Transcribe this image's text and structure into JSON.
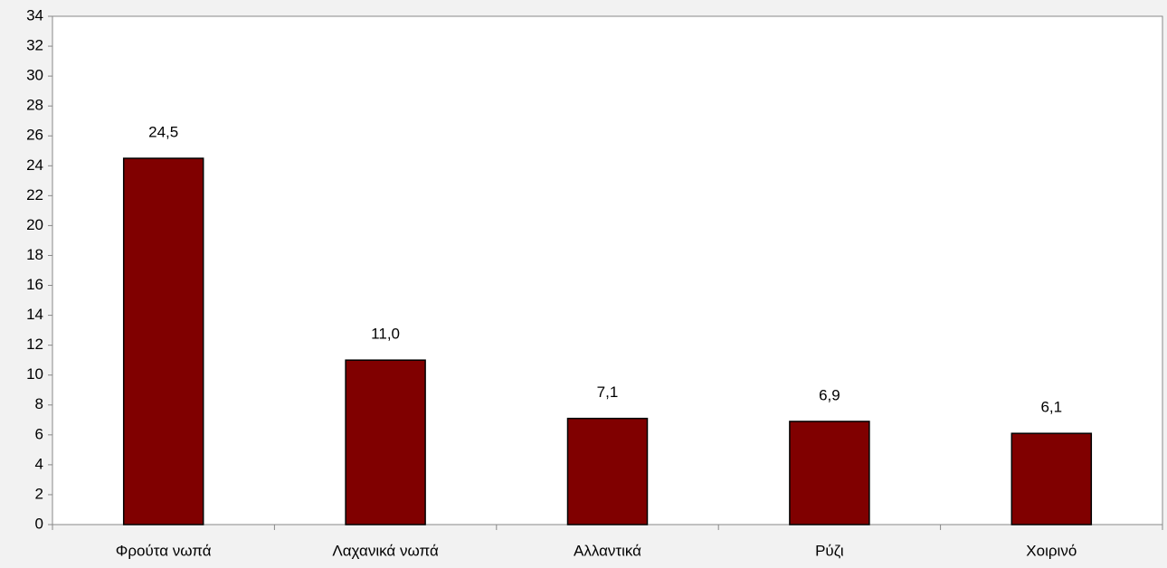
{
  "chart_data": {
    "type": "bar",
    "categories": [
      "Φρούτα νωπά",
      "Λαχανικά νωπά",
      "Αλλαντικά",
      "Ρύζι",
      "Χοιρινό"
    ],
    "values": [
      24.5,
      11.0,
      7.1,
      6.9,
      6.1
    ],
    "value_labels": [
      "24,5",
      "11,0",
      "7,1",
      "6,9",
      "6,1"
    ],
    "color": "#800000",
    "ylim": [
      0,
      34
    ],
    "yticks": [
      0,
      2,
      4,
      6,
      8,
      10,
      12,
      14,
      16,
      18,
      20,
      22,
      24,
      26,
      28,
      30,
      32,
      34
    ],
    "grid": false
  }
}
